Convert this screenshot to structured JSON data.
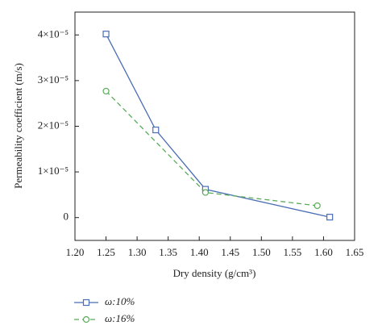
{
  "chart_data": {
    "type": "line",
    "x_label": "Dry density (g/cm³)",
    "y_label": "Permeability coefficient (m/s)",
    "xlim": [
      1.2,
      1.65
    ],
    "xticks": [
      {
        "value": 1.2,
        "label": "1.20"
      },
      1.25,
      {
        "value": 1.3,
        "label": "1.30"
      },
      1.35,
      {
        "value": 1.4,
        "label": "1.40"
      },
      1.45,
      {
        "value": 1.5,
        "label": "1.50"
      },
      1.55,
      {
        "value": 1.6,
        "label": "1.60"
      },
      1.65
    ],
    "ylim": [
      -5e-06,
      4.5e-05
    ],
    "yticks": [
      0,
      {
        "value": 1e-05,
        "label": "1×10⁻⁵"
      },
      {
        "value": 2e-05,
        "label": "2×10⁻⁵"
      },
      {
        "value": 3e-05,
        "label": "3×10⁻⁵"
      },
      {
        "value": 4e-05,
        "label": "4×10⁻⁵"
      }
    ],
    "series": [
      {
        "name": "ω:10%",
        "color": "#4a6db3",
        "marker": "square",
        "dashed": false,
        "x": [
          1.25,
          1.33,
          1.41,
          1.61
        ],
        "values": [
          4.02e-05,
          1.92e-05,
          6.2e-06,
          1e-07
        ]
      },
      {
        "name": "ω:16%",
        "color": "#5aab5a",
        "marker": "circle",
        "dashed": true,
        "x": [
          1.25,
          1.41,
          1.59
        ],
        "values": [
          2.77e-05,
          5.5e-06,
          2.6e-06
        ]
      }
    ]
  }
}
